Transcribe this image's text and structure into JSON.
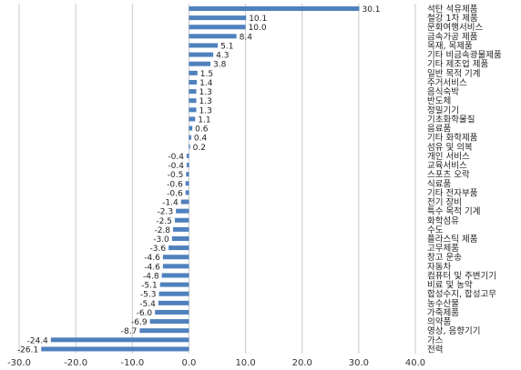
{
  "chart_data": {
    "type": "bar",
    "orientation": "horizontal",
    "categories": [
      "석탄 석유제품",
      "철강 1차 제품",
      "문화여행서비스",
      "금속가공 제품",
      "목재, 목제품",
      "기타 비금속광물제품",
      "기타 제조업 제품",
      "일반 목적 기계",
      "주거서비스",
      "음식숙박",
      "반도체",
      "정밀기기",
      "기초화학물질",
      "음료품",
      "기타 화학제품",
      "섬유 및 의복",
      "개인 서비스",
      "교육서비스",
      "스포츠 오락",
      "식료품",
      "기타 전자부품",
      "전기 장비",
      "특수 목적 기계",
      "화학섬유",
      "수도",
      "플라스틱 제품",
      "고무제품",
      "창고 운송",
      "자동차",
      "컴퓨터 및 주변기기",
      "비료 및 농약",
      "합성수지, 합성고무",
      "농수산물",
      "가죽제품",
      "의약품",
      "영상, 음향기기",
      "가스",
      "전력"
    ],
    "values": [
      30.1,
      10.1,
      10.0,
      8.4,
      5.1,
      4.3,
      3.8,
      1.5,
      1.4,
      1.3,
      1.3,
      1.3,
      1.1,
      0.6,
      0.4,
      0.2,
      -0.4,
      -0.4,
      -0.5,
      -0.6,
      -0.6,
      -1.4,
      -2.3,
      -2.5,
      -2.8,
      -3.0,
      -3.6,
      -4.6,
      -4.6,
      -4.8,
      -5.1,
      -5.3,
      -5.4,
      -6.0,
      -6.9,
      -8.7,
      -24.4,
      -26.1
    ],
    "xlim": [
      -30,
      40
    ],
    "x_ticks": [
      "-30.0",
      "-20.0",
      "-10.0",
      "0.0",
      "10.0",
      "20.0",
      "30.0",
      "40.0"
    ],
    "grid": true,
    "legend": "none",
    "bar_color": "#4f81bd"
  }
}
